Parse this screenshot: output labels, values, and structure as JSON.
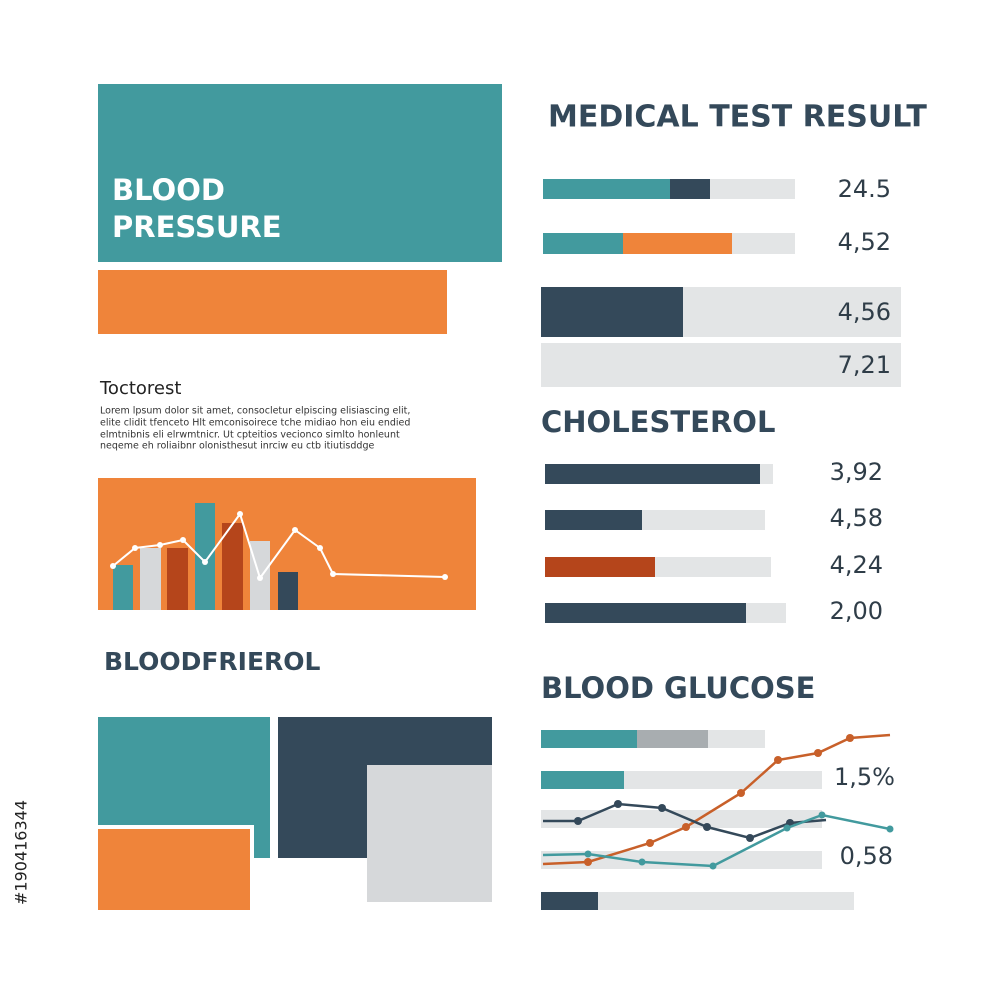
{
  "blood_pressure": {
    "title_lines": [
      "BLOOD",
      "PRESSURE"
    ]
  },
  "text_block": {
    "heading": "Toctorest",
    "lines": [
      "Lorem lpsum dolor sit amet, consocletur elpiscing elisiascing elit,",
      "elite clidit tfenceto Hlt emconisoirece tche midiao hon eiu endied",
      "elmtnibnis eli elrwmtnicr. Ut cpteitios vecionco simlto honleunt",
      "neqeme eh roliaibnr olonisthesut inrciw eu ctb itiutisddge"
    ]
  },
  "left_section_title": "BLOODFRIEROL",
  "medical_test_result": {
    "title": "MEDICAL TEST RESULT",
    "values": [
      "24.5",
      "4,52",
      "4,56",
      "7,21"
    ]
  },
  "cholesterol": {
    "title": "CHOLESTEROL",
    "values": [
      "3,92",
      "4,58",
      "4,24",
      "2,00"
    ]
  },
  "blood_glucose": {
    "title": "BLOOD GLUCOSE",
    "values": [
      "1,5%",
      "0,58"
    ]
  },
  "stock_id": "#190416344"
}
